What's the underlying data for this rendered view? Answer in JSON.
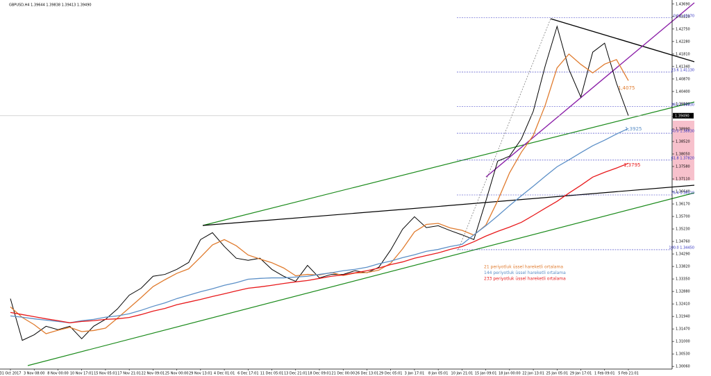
{
  "chart_data": {
    "type": "line",
    "title": "GBPUSD,H4  1.39644 1.39838 1.39413 1.39490",
    "categories": [
      "31 Oct 2017",
      null,
      "3 Nov 08:00",
      null,
      "8 Nov 00:00",
      null,
      "10 Nov 17:01",
      null,
      "15 Nov 05:01",
      null,
      "17 Nov 21:01",
      null,
      "22 Nov 09:01",
      null,
      "25 Nov 00:00",
      null,
      "29 Nov 13:01",
      null,
      "4 Dec 01:01",
      null,
      "6 Dec 17:01",
      null,
      "11 Dec 05:01",
      null,
      "13 Dec 21:01",
      null,
      "18 Dec 09:01",
      null,
      "21 Dec 00:00",
      null,
      "26 Dec 13:01",
      null,
      "29 Dec 05:01",
      null,
      "3 Jan 17:01",
      null,
      "8 Jan 05:01",
      null,
      "10 Jan 21:01",
      null,
      "15 Jan 09:01",
      null,
      "18 Jan 00:00",
      null,
      "22 Jan 13:01",
      null,
      "25 Jan 05:01",
      null,
      "29 Jan 17:01",
      null,
      "1 Feb 09:01",
      null,
      "5 Feb 21:01"
    ],
    "series": [
      {
        "color": "#000000",
        "values": [
          1.3261,
          1.3104,
          1.3125,
          1.3157,
          1.3144,
          1.3157,
          1.311,
          1.3157,
          1.3183,
          1.3222,
          1.3274,
          1.33,
          1.3345,
          1.3352,
          1.3371,
          1.3397,
          1.3483,
          1.3509,
          1.3457,
          1.3413,
          1.3405,
          1.3413,
          1.3371,
          1.3345,
          1.3326,
          1.3386,
          1.3339,
          1.3352,
          1.3352,
          1.3366,
          1.3358,
          1.3379,
          1.3444,
          1.3522,
          1.3569,
          1.3528,
          1.3535,
          1.3517,
          1.3501,
          1.3483,
          1.3627,
          1.3778,
          1.3797,
          1.3862,
          1.3966,
          1.4136,
          1.4285,
          1.4123,
          1.4019,
          1.4188,
          1.4222,
          1.4071,
          1.3949
        ]
      },
      {
        "name": "21 periyotluk üssel hareketli ortalama",
        "color": "#e07b2e",
        "values": [
          1.323,
          1.319,
          1.3163,
          1.3129,
          1.3142,
          1.3153,
          1.3137,
          1.3141,
          1.315,
          1.3187,
          1.3226,
          1.3265,
          1.3306,
          1.3332,
          1.3356,
          1.3373,
          1.3417,
          1.3463,
          1.3483,
          1.346,
          1.3425,
          1.341,
          1.3396,
          1.3376,
          1.3347,
          1.3352,
          1.335,
          1.3359,
          1.3348,
          1.3357,
          1.3359,
          1.3368,
          1.3394,
          1.3448,
          1.3512,
          1.354,
          1.3544,
          1.3527,
          1.3518,
          1.35,
          1.3537,
          1.3629,
          1.3734,
          1.3812,
          1.3875,
          1.3988,
          1.4129,
          1.4181,
          1.4142,
          1.411,
          1.4143,
          1.416,
          1.4081
        ]
      },
      {
        "name": "144 periyotluk üssel hareketli ortalama",
        "color": "#5b8fc7",
        "values": [
          1.3196,
          1.3191,
          1.3185,
          1.318,
          1.3175,
          1.317,
          1.3178,
          1.3183,
          1.3191,
          1.3196,
          1.3204,
          1.3217,
          1.3232,
          1.3245,
          1.3261,
          1.3274,
          1.3287,
          1.3298,
          1.3311,
          1.3321,
          1.3334,
          1.3337,
          1.3339,
          1.3339,
          1.3342,
          1.3345,
          1.3352,
          1.3358,
          1.3366,
          1.3371,
          1.3379,
          1.3392,
          1.3402,
          1.3415,
          1.3426,
          1.3439,
          1.3446,
          1.3457,
          1.3465,
          1.3501,
          1.3535,
          1.3572,
          1.3611,
          1.3648,
          1.3684,
          1.3721,
          1.3757,
          1.3783,
          1.381,
          1.3836,
          1.3857,
          1.388,
          1.3901
        ]
      },
      {
        "name": "233 periyotluk üssel hareketli ortalama",
        "color": "#e8191b",
        "values": [
          1.3209,
          1.3201,
          1.3193,
          1.3185,
          1.3178,
          1.317,
          1.3175,
          1.3178,
          1.3183,
          1.3185,
          1.319,
          1.3201,
          1.3214,
          1.3224,
          1.3238,
          1.3248,
          1.3258,
          1.3269,
          1.3279,
          1.329,
          1.33,
          1.3305,
          1.3311,
          1.3318,
          1.3324,
          1.3329,
          1.3337,
          1.3345,
          1.335,
          1.3358,
          1.3366,
          1.3376,
          1.3389,
          1.3399,
          1.3413,
          1.3423,
          1.3433,
          1.3446,
          1.3457,
          1.3475,
          1.3496,
          1.3514,
          1.353,
          1.3548,
          1.3574,
          1.3601,
          1.3627,
          1.3658,
          1.3687,
          1.3718,
          1.3736,
          1.3752,
          1.377
        ]
      }
    ],
    "ylim": [
      1.2996,
      1.4379
    ],
    "yticks": [
      {
        "value": 1.4369,
        "label": "1.43690"
      },
      {
        "value": 1.4322,
        "label": "1.43220"
      },
      {
        "value": 1.4275,
        "label": "1.42750"
      },
      {
        "value": 1.4228,
        "label": "1.42280"
      },
      {
        "value": 1.4181,
        "label": "1.41810"
      },
      {
        "value": 1.4134,
        "label": "1.41340"
      },
      {
        "value": 1.4087,
        "label": "1.40870"
      },
      {
        "value": 1.404,
        "label": "1.40400"
      },
      {
        "value": 1.3993,
        "label": "1.39930"
      },
      {
        "value": 1.3946,
        "label": "1.39460"
      },
      {
        "value": 1.3899,
        "label": "1.38990"
      },
      {
        "value": 1.3852,
        "label": "1.38520"
      },
      {
        "value": 1.3805,
        "label": "1.38050"
      },
      {
        "value": 1.3758,
        "label": "1.37580"
      },
      {
        "value": 1.3711,
        "label": "1.37110"
      },
      {
        "value": 1.3664,
        "label": "1.36640"
      },
      {
        "value": 1.3617,
        "label": "1.36170"
      },
      {
        "value": 1.357,
        "label": "1.35700"
      },
      {
        "value": 1.3523,
        "label": "1.35230"
      },
      {
        "value": 1.3476,
        "label": "1.34760"
      },
      {
        "value": 1.3429,
        "label": "1.34290"
      },
      {
        "value": 1.3382,
        "label": "1.33820"
      },
      {
        "value": 1.3335,
        "label": "1.33350"
      },
      {
        "value": 1.3288,
        "label": "1.32880"
      },
      {
        "value": 1.3241,
        "label": "1.32410"
      },
      {
        "value": 1.3194,
        "label": "1.31940"
      },
      {
        "value": 1.3147,
        "label": "1.31470"
      },
      {
        "value": 1.31,
        "label": "1.31000"
      },
      {
        "value": 1.3053,
        "label": "1.30530"
      },
      {
        "value": 1.3006,
        "label": "1.30060"
      }
    ],
    "last_price": {
      "value": 1.3949,
      "label": "1.39490"
    },
    "fibonacci": [
      {
        "value": 1.4317,
        "label": "0.0 1.43170"
      },
      {
        "value": 1.4113,
        "label": "23.6 1.41130"
      },
      {
        "value": 1.3983,
        "label": "38.2 1.39830"
      },
      {
        "value": 1.3883,
        "label": "50.0 1.38830"
      },
      {
        "value": 1.3782,
        "label": "61.8 1.37820"
      },
      {
        "value": 1.3651,
        "label": "76.4 1.36510"
      },
      {
        "value": 1.3445,
        "label": "100.0 1.34450"
      }
    ],
    "annotations": [
      "1,4075",
      "1,3925",
      "1,3795"
    ],
    "grid": false
  }
}
